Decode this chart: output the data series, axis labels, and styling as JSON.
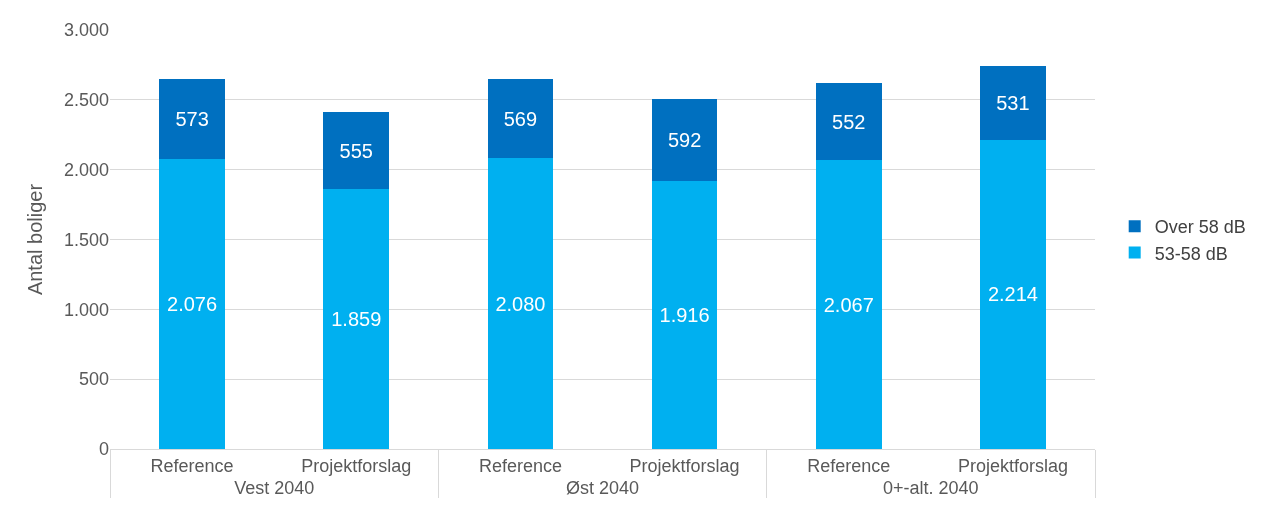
{
  "chart_data": {
    "type": "bar",
    "stacked": true,
    "ylabel": "Antal boliger",
    "categories": [
      "Reference",
      "Projektforslag",
      "Reference",
      "Projektforslag",
      "Reference",
      "Projektforslag"
    ],
    "annotations": [
      "Vest 2040",
      "Øst 2040",
      "0+-alt. 2040"
    ],
    "series": [
      {
        "name": "53-58 dB",
        "color": "#00b0f0",
        "values": [
          2076,
          1859,
          2080,
          1916,
          2067,
          2214
        ],
        "value_labels": [
          "2.076",
          "1.859",
          "2.080",
          "1.916",
          "2.067",
          "2.214"
        ]
      },
      {
        "name": "Over 58 dB",
        "color": "#0070c0",
        "values": [
          573,
          555,
          569,
          592,
          552,
          531
        ],
        "value_labels": [
          "573",
          "555",
          "569",
          "592",
          "552",
          "531"
        ]
      }
    ],
    "ylim": [
      0,
      3000
    ],
    "yticks": [
      {
        "value": 0,
        "label": "0"
      },
      {
        "value": 500,
        "label": "500"
      },
      {
        "value": 1000,
        "label": "1.000"
      },
      {
        "value": 1500,
        "label": "1.500"
      },
      {
        "value": 2000,
        "label": "2.000"
      },
      {
        "value": 2500,
        "label": "2.500"
      },
      {
        "value": 3000,
        "label": "3.000"
      }
    ],
    "grid": "y",
    "legend": "right"
  }
}
